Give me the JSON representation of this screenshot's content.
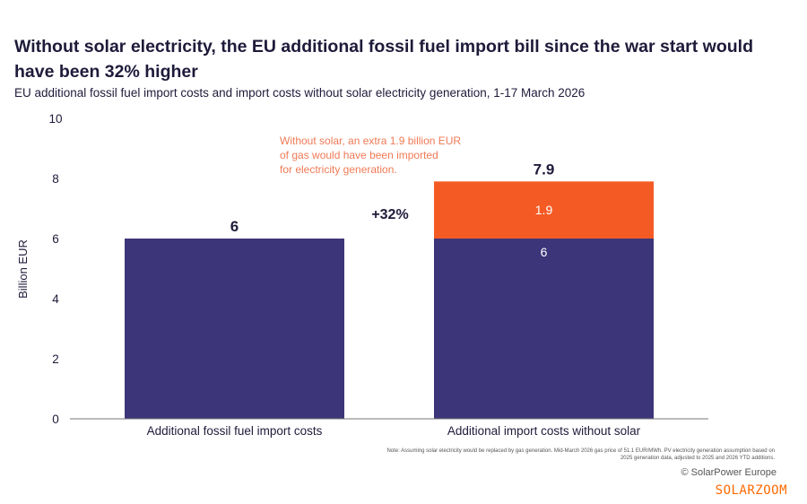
{
  "title": "Without solar electricity, the EU additional fossil fuel import bill since the war start would have been 32% higher",
  "subtitle": "EU additional fossil fuel import costs and import costs without solar electricity generation, 1-17 March 2026",
  "note": "Note: Assuming solar electricity would be replaced by gas generation. Mid-March 2026 gas price of 51.1 EUR/MWh. PV electricity generation assumption based on 2025 generation data, adjusted to 2025 and 2026 YTD additions.",
  "credit": "© SolarPower Europe",
  "watermark": "SOLARZOOM",
  "colors": {
    "base": "#3d3579",
    "solar": "#f45b24",
    "annotation": "#f07a55",
    "text": "#1e1b3a"
  },
  "chart_data": {
    "type": "bar",
    "stacked": true,
    "categories": [
      "Additional fossil fuel import costs",
      "Additional import costs without solar"
    ],
    "series": [
      {
        "values": [
          6,
          6
        ],
        "labels": [
          "",
          "6"
        ],
        "color": "#3d3579"
      },
      {
        "values": [
          0,
          1.9
        ],
        "labels": [
          "",
          "1.9"
        ],
        "color": "#f45b24"
      }
    ],
    "totals": [
      "6",
      "7.9"
    ],
    "ylabel": "Billion EUR",
    "ylim": [
      0,
      10
    ],
    "yticks": [
      0,
      2,
      4,
      6,
      8,
      10
    ],
    "grid": false,
    "annotations": {
      "change": "+32%",
      "callout": [
        "Without solar, an extra 1.9 billion EUR",
        "of gas would have been imported",
        "for electricity generation."
      ]
    }
  }
}
